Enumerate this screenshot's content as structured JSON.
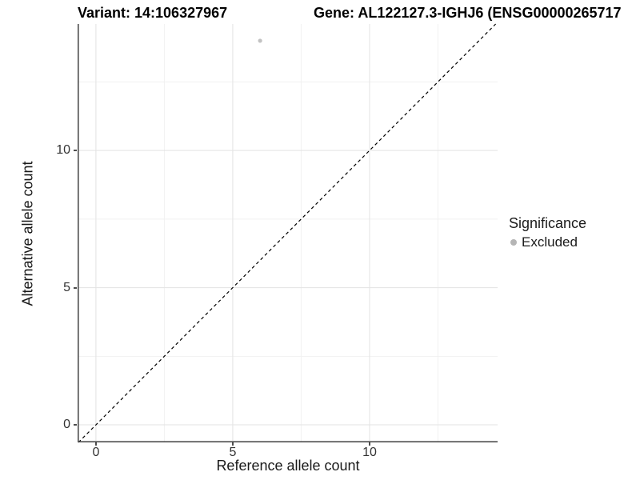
{
  "titles": {
    "variant": "Variant: 14:106327967",
    "gene": "Gene: AL122127.3-IGHJ6 (ENSG00000265717"
  },
  "axes": {
    "x": {
      "label": "Reference allele count",
      "tick_labels": [
        "0",
        "5",
        "10"
      ]
    },
    "y": {
      "label": "Alternative allele count",
      "tick_labels": [
        "0",
        "5",
        "10"
      ]
    }
  },
  "legend": {
    "title": "Significance",
    "items": [
      {
        "label": "Excluded",
        "marker_color": "#b5b5b5"
      }
    ]
  },
  "colors": {
    "title": "#000000",
    "axis_line": "#4d4d4d",
    "axis_text": "#333333",
    "grid_major": "#e3e3e3",
    "grid_minor": "#f1f1f1",
    "identity_line": "#000000",
    "point": "#c2c2c2",
    "background": "#ffffff"
  },
  "chart_data": {
    "type": "scatter",
    "title": "Variant: 14:106327967   Gene: AL122127.3-IGHJ6 (ENSG00000265717",
    "xlabel": "Reference allele count",
    "ylabel": "Alternative allele count",
    "xlim": [
      -0.67,
      14.68
    ],
    "ylim": [
      -0.64,
      14.61
    ],
    "x_major_ticks": [
      0,
      5,
      10
    ],
    "y_major_ticks": [
      0,
      5,
      10
    ],
    "x_minor_ticks": [
      2.5,
      7.5,
      12.5
    ],
    "y_minor_ticks": [
      2.5,
      7.5,
      12.5
    ],
    "grid": true,
    "legend_position": "right",
    "series": [
      {
        "name": "Excluded",
        "color": "#c2c2c2",
        "points": [
          {
            "x": 6,
            "y": 14
          }
        ]
      }
    ],
    "reference_line": {
      "type": "identity",
      "equation": "y = x",
      "style": "dashed",
      "color": "#000000"
    }
  }
}
